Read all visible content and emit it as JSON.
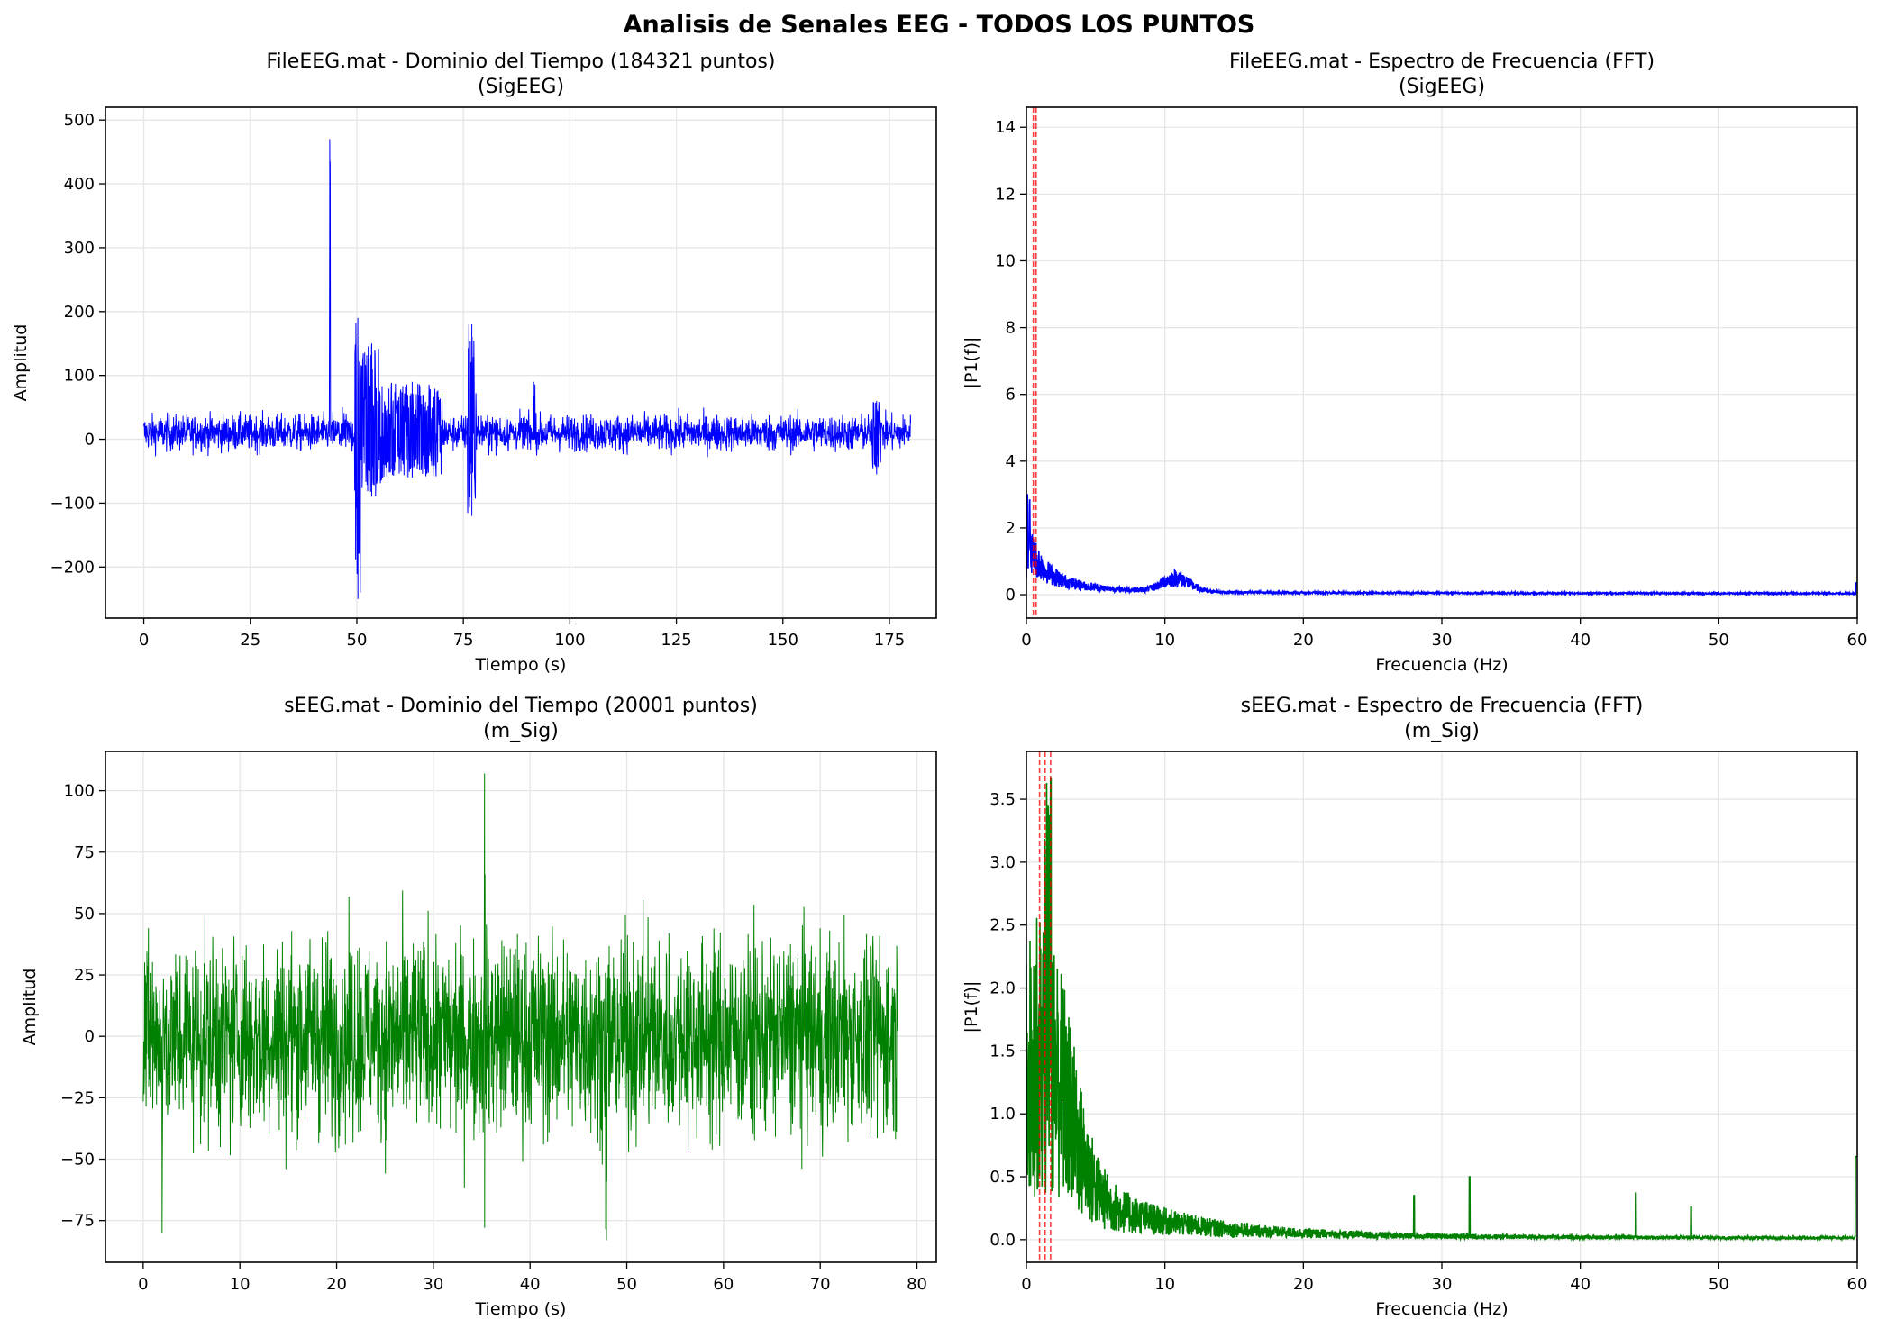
{
  "suptitle": "Analisis de Senales EEG - TODOS LOS PUNTOS",
  "colors": {
    "blue": "#0000ff",
    "green": "#008000",
    "red": "#ff0000",
    "grid": "#e6e6e6"
  },
  "chart_data": [
    {
      "id": "p1",
      "type": "line",
      "title": "FileEEG.mat - Dominio del Tiempo (184321 puntos)",
      "subtitle": "(SigEEG)",
      "xlabel": "Tiempo (s)",
      "ylabel": "Amplitud",
      "xlim": [
        -9,
        186
      ],
      "ylim": [
        -280,
        520
      ],
      "xticks": [
        0,
        25,
        50,
        75,
        100,
        125,
        150,
        175
      ],
      "xtick_labels": [
        "0",
        "25",
        "50",
        "75",
        "100",
        "125",
        "150",
        "175"
      ],
      "yticks": [
        -200,
        -100,
        0,
        100,
        200,
        300,
        400,
        500
      ],
      "ytick_labels": [
        "−200",
        "−100",
        "0",
        "100",
        "200",
        "300",
        "400",
        "500"
      ],
      "grid": true,
      "series": [
        {
          "color": "#0000ff",
          "x_range": [
            0,
            180
          ],
          "baseline": 10,
          "noise": 20,
          "events": [
            [
              43.5,
              43.8,
              470,
              0
            ],
            [
              49.5,
              51,
              190,
              -250
            ],
            [
              51,
              56,
              150,
              -90
            ],
            [
              56,
              70,
              90,
              -60
            ],
            [
              76,
              78,
              180,
              -120
            ],
            [
              91,
              92,
              90,
              0
            ],
            [
              171,
              173,
              60,
              -55
            ]
          ]
        }
      ],
      "vlines": []
    },
    {
      "id": "p2",
      "type": "line",
      "title": "FileEEG.mat - Espectro de Frecuencia (FFT)",
      "subtitle": "(SigEEG)",
      "xlabel": "Frecuencia (Hz)",
      "ylabel": "|P1(f)|",
      "xlim": [
        0,
        60
      ],
      "ylim": [
        -0.7,
        14.6
      ],
      "xticks": [
        0,
        10,
        20,
        30,
        40,
        50,
        60
      ],
      "xtick_labels": [
        "0",
        "10",
        "20",
        "30",
        "40",
        "50",
        "60"
      ],
      "yticks": [
        0,
        2,
        4,
        6,
        8,
        10,
        12,
        14
      ],
      "ytick_labels": [
        "0",
        "2",
        "4",
        "6",
        "8",
        "10",
        "12",
        "14"
      ],
      "grid": true,
      "series": [
        {
          "color": "#0000ff",
          "x_range": [
            0,
            60
          ],
          "spectrum": "sig"
        }
      ],
      "vlines": [
        0.5,
        0.7
      ]
    },
    {
      "id": "p3",
      "type": "line",
      "title": "sEEG.mat - Dominio del Tiempo (20001 puntos)",
      "subtitle": "(m_Sig)",
      "xlabel": "Tiempo (s)",
      "ylabel": "Amplitud",
      "xlim": [
        -3.9,
        82
      ],
      "ylim": [
        -92,
        116
      ],
      "xticks": [
        0,
        10,
        20,
        30,
        40,
        50,
        60,
        70,
        80
      ],
      "xtick_labels": [
        "0",
        "10",
        "20",
        "30",
        "40",
        "50",
        "60",
        "70",
        "80"
      ],
      "yticks": [
        -75,
        -50,
        -25,
        0,
        25,
        50,
        75,
        100
      ],
      "ytick_labels": [
        "−75",
        "−50",
        "−25",
        "0",
        "25",
        "50",
        "75",
        "100"
      ],
      "grid": true,
      "series": [
        {
          "color": "#008000",
          "x_range": [
            0,
            78
          ],
          "baseline": 0,
          "noise": 28,
          "events": [
            [
              35.2,
              35.4,
              107,
              -78
            ],
            [
              1.9,
              2.0,
              0,
              -80
            ],
            [
              47.8,
              48,
              0,
              -83
            ]
          ]
        }
      ],
      "vlines": []
    },
    {
      "id": "p4",
      "type": "line",
      "title": "sEEG.mat - Espectro de Frecuencia (FFT)",
      "subtitle": "(m_Sig)",
      "xlabel": "Frecuencia (Hz)",
      "ylabel": "|P1(f)|",
      "xlim": [
        0,
        60
      ],
      "ylim": [
        -0.18,
        3.88
      ],
      "xticks": [
        0,
        10,
        20,
        30,
        40,
        50,
        60
      ],
      "xtick_labels": [
        "0",
        "10",
        "20",
        "30",
        "40",
        "50",
        "60"
      ],
      "yticks": [
        0.0,
        0.5,
        1.0,
        1.5,
        2.0,
        2.5,
        3.0,
        3.5
      ],
      "ytick_labels": [
        "0.0",
        "0.5",
        "1.0",
        "1.5",
        "2.0",
        "2.5",
        "3.0",
        "3.5"
      ],
      "grid": true,
      "series": [
        {
          "color": "#008000",
          "x_range": [
            0,
            60
          ],
          "spectrum": "m"
        }
      ],
      "vlines": [
        0.95,
        1.35,
        1.75
      ]
    }
  ]
}
